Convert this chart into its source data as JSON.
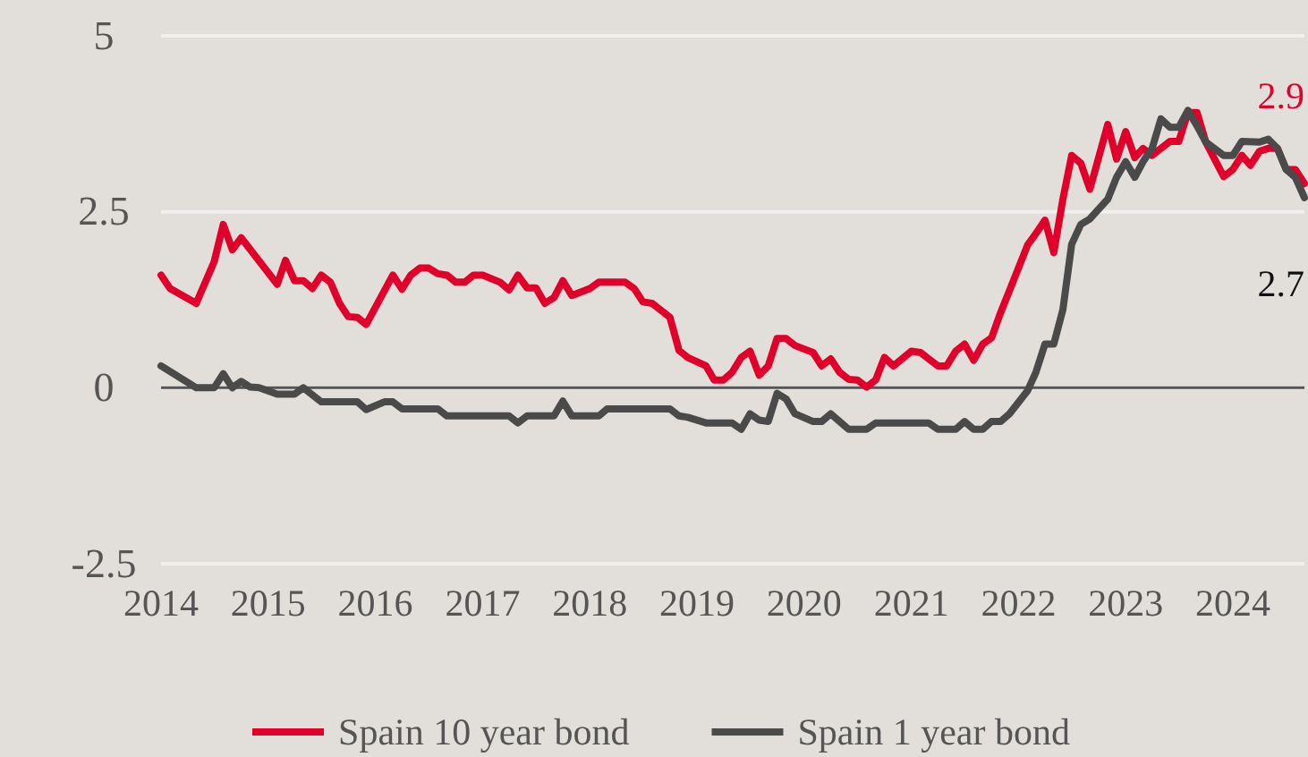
{
  "chart_data": {
    "type": "line",
    "xlim": [
      "2014-01",
      "2024-09"
    ],
    "xticks": [
      "2014",
      "2015",
      "2016",
      "2017",
      "2018",
      "2019",
      "2020",
      "2021",
      "2022",
      "2023",
      "2024"
    ],
    "ylim": [
      -2.5,
      5
    ],
    "yticks": [
      -2.5,
      0,
      2.5,
      5
    ],
    "grid": "y",
    "legend": "bottom",
    "line_style": "solid",
    "marker": "none",
    "ref_lines": [
      {
        "axis": "y",
        "value": 0,
        "label": null,
        "color": "#555555"
      }
    ],
    "annotations": [
      {
        "text": "2.9",
        "x": "2024-09",
        "y": 2.9
      },
      {
        "text": "2.7",
        "x": "2024-09",
        "y": 2.7
      }
    ],
    "series": [
      {
        "name": "Spain 10 year bond",
        "color": "#e0002a",
        "x": [
          "2014-01",
          "2014-02",
          "2014-05",
          "2014-07",
          "2014-08",
          "2014-09",
          "2014-10",
          "2015-02",
          "2015-03",
          "2015-04",
          "2015-05",
          "2015-06",
          "2015-07",
          "2015-08",
          "2015-09",
          "2015-10",
          "2015-11",
          "2015-12",
          "2016-03",
          "2016-04",
          "2016-05",
          "2016-06",
          "2016-07",
          "2016-08",
          "2016-09",
          "2016-10",
          "2016-11",
          "2016-12",
          "2017-01",
          "2017-03",
          "2017-04",
          "2017-05",
          "2017-06",
          "2017-07",
          "2017-08",
          "2017-09",
          "2017-10",
          "2017-11",
          "2018-01",
          "2018-02",
          "2018-03",
          "2018-04",
          "2018-05",
          "2018-06",
          "2018-07",
          "2018-08",
          "2018-09",
          "2018-10",
          "2018-11",
          "2018-12",
          "2019-02",
          "2019-03",
          "2019-04",
          "2019-05",
          "2019-06",
          "2019-07",
          "2019-08",
          "2019-09",
          "2019-10",
          "2019-11",
          "2019-12",
          "2020-02",
          "2020-03",
          "2020-04",
          "2020-05",
          "2020-06",
          "2020-07",
          "2020-08",
          "2020-09",
          "2020-10",
          "2020-11",
          "2021-01",
          "2021-02",
          "2021-03",
          "2021-04",
          "2021-05",
          "2021-06",
          "2021-07",
          "2021-08",
          "2021-09",
          "2021-10",
          "2021-11",
          "2021-12",
          "2022-02",
          "2022-03",
          "2022-04",
          "2022-05",
          "2022-06",
          "2022-07",
          "2022-08",
          "2022-09",
          "2022-11",
          "2022-12",
          "2023-01",
          "2023-02",
          "2023-03",
          "2023-04",
          "2023-05",
          "2023-06",
          "2023-07",
          "2023-08",
          "2023-09",
          "2023-10",
          "2023-12",
          "2024-01",
          "2024-02",
          "2024-03",
          "2024-04",
          "2024-05",
          "2024-06",
          "2024-07",
          "2024-08",
          "2024-09"
        ],
        "values": [
          1.6,
          1.41,
          1.2,
          1.79,
          2.32,
          1.96,
          2.13,
          1.47,
          1.81,
          1.52,
          1.52,
          1.41,
          1.6,
          1.5,
          1.2,
          1.01,
          1.0,
          0.9,
          1.6,
          1.4,
          1.6,
          1.7,
          1.7,
          1.62,
          1.6,
          1.5,
          1.5,
          1.6,
          1.6,
          1.5,
          1.39,
          1.6,
          1.42,
          1.42,
          1.2,
          1.28,
          1.52,
          1.31,
          1.41,
          1.5,
          1.5,
          1.5,
          1.5,
          1.41,
          1.22,
          1.2,
          1.1,
          1.0,
          0.53,
          0.43,
          0.31,
          0.11,
          0.11,
          0.22,
          0.43,
          0.52,
          0.18,
          0.31,
          0.7,
          0.7,
          0.6,
          0.5,
          0.31,
          0.41,
          0.22,
          0.12,
          0.11,
          0.01,
          0.11,
          0.43,
          0.31,
          0.52,
          0.5,
          0.41,
          0.31,
          0.31,
          0.52,
          0.62,
          0.39,
          0.62,
          0.71,
          1.07,
          1.38,
          2.03,
          2.19,
          2.38,
          1.92,
          2.68,
          3.3,
          3.19,
          2.82,
          3.74,
          3.25,
          3.64,
          3.27,
          3.4,
          3.3,
          3.4,
          3.5,
          3.5,
          3.91,
          3.91,
          3.49,
          3.0,
          3.1,
          3.3,
          3.16,
          3.36,
          3.4,
          3.4,
          3.1,
          3.1,
          2.9
        ]
      },
      {
        "name": "Spain 1 year bond",
        "color": "#4a4a4a",
        "x": [
          "2014-01",
          "2014-05",
          "2014-07",
          "2014-08",
          "2014-09",
          "2014-10",
          "2014-11",
          "2014-12",
          "2015-02",
          "2015-04",
          "2015-05",
          "2015-07",
          "2015-09",
          "2015-11",
          "2015-12",
          "2016-02",
          "2016-03",
          "2016-04",
          "2016-06",
          "2016-08",
          "2016-09",
          "2017-04",
          "2017-05",
          "2017-06",
          "2017-09",
          "2017-10",
          "2017-11",
          "2018-02",
          "2018-03",
          "2018-10",
          "2018-11",
          "2018-12",
          "2019-02",
          "2019-05",
          "2019-06",
          "2019-07",
          "2019-08",
          "2019-09",
          "2019-10",
          "2019-11",
          "2019-12",
          "2020-02",
          "2020-03",
          "2020-04",
          "2020-05",
          "2020-06",
          "2020-08",
          "2020-09",
          "2021-03",
          "2021-04",
          "2021-06",
          "2021-07",
          "2021-08",
          "2021-09",
          "2021-10",
          "2021-11",
          "2021-12",
          "2022-02",
          "2022-03",
          "2022-04",
          "2022-05",
          "2022-06",
          "2022-07",
          "2022-08",
          "2022-09",
          "2022-11",
          "2022-12",
          "2023-01",
          "2023-02",
          "2023-03",
          "2023-04",
          "2023-05",
          "2023-06",
          "2023-07",
          "2023-08",
          "2023-09",
          "2023-10",
          "2023-12",
          "2024-01",
          "2024-02",
          "2024-04",
          "2024-05",
          "2024-06",
          "2024-07",
          "2024-08",
          "2024-09"
        ],
        "values": [
          0.31,
          0,
          0,
          0.2,
          0,
          0.09,
          0.01,
          0,
          -0.09,
          -0.09,
          0,
          -0.2,
          -0.2,
          -0.2,
          -0.31,
          -0.2,
          -0.2,
          -0.3,
          -0.3,
          -0.3,
          -0.4,
          -0.4,
          -0.5,
          -0.4,
          -0.4,
          -0.19,
          -0.4,
          -0.4,
          -0.3,
          -0.3,
          -0.4,
          -0.42,
          -0.5,
          -0.5,
          -0.59,
          -0.37,
          -0.46,
          -0.48,
          -0.08,
          -0.16,
          -0.37,
          -0.48,
          -0.48,
          -0.37,
          -0.48,
          -0.59,
          -0.59,
          -0.5,
          -0.5,
          -0.59,
          -0.59,
          -0.48,
          -0.59,
          -0.59,
          -0.48,
          -0.48,
          -0.37,
          -0.04,
          0.22,
          0.62,
          0.62,
          1.11,
          2.04,
          2.32,
          2.4,
          2.68,
          2.99,
          3.21,
          2.99,
          3.21,
          3.4,
          3.82,
          3.7,
          3.7,
          3.94,
          3.72,
          3.49,
          3.3,
          3.3,
          3.5,
          3.49,
          3.53,
          3.4,
          3.1,
          2.99,
          2.7
        ]
      }
    ]
  }
}
